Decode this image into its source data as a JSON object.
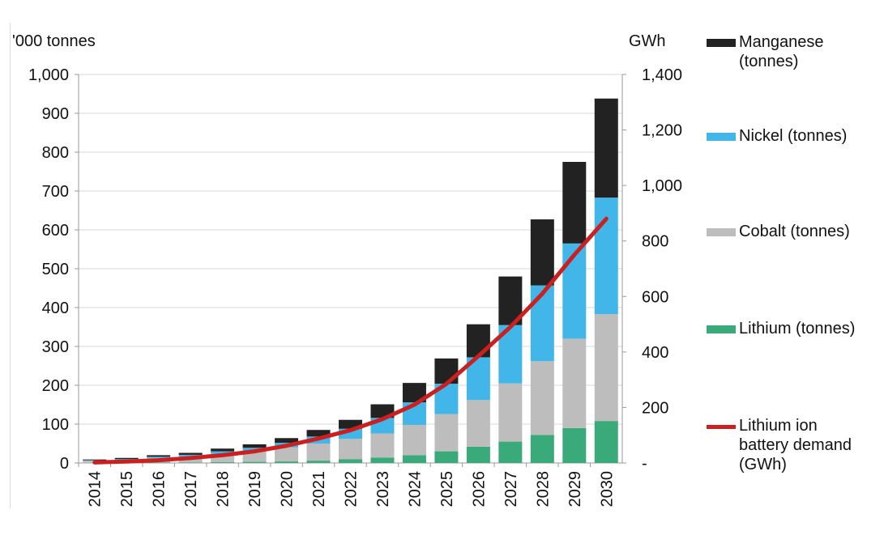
{
  "chart_data": {
    "type": "bar",
    "stacked": true,
    "categories": [
      "2014",
      "2015",
      "2016",
      "2017",
      "2018",
      "2019",
      "2020",
      "2021",
      "2022",
      "2023",
      "2024",
      "2025",
      "2026",
      "2027",
      "2028",
      "2029",
      "2030"
    ],
    "left_axis": {
      "label": "'000 tonnes",
      "ylim": [
        0,
        1000
      ],
      "ticks": [
        0,
        100,
        200,
        300,
        400,
        500,
        600,
        700,
        800,
        900,
        1000
      ],
      "tick_labels": [
        "0",
        "100",
        "200",
        "300",
        "400",
        "500",
        "600",
        "700",
        "800",
        "900",
        "1,000"
      ]
    },
    "right_axis": {
      "label": "GWh",
      "ylim": [
        0,
        1400
      ],
      "ticks": [
        0,
        200,
        400,
        600,
        800,
        1000,
        1200,
        1400
      ],
      "tick_labels": [
        "-",
        "200",
        "400",
        "600",
        "800",
        "1,000",
        "1,200",
        "1,400"
      ]
    },
    "series": [
      {
        "name": "Lithium (tonnes)",
        "color": "#3aaa7a",
        "values": [
          0,
          0,
          1,
          1,
          2,
          3,
          4,
          6,
          10,
          14,
          20,
          30,
          42,
          55,
          72,
          90,
          108
        ]
      },
      {
        "name": "Cobalt (tonnes)",
        "color": "#bdbdbd",
        "values": [
          6,
          8,
          12,
          16,
          22,
          28,
          36,
          44,
          52,
          62,
          78,
          96,
          120,
          150,
          190,
          230,
          275
        ]
      },
      {
        "name": "Nickel (tonnes)",
        "color": "#42b6e8",
        "values": [
          1,
          2,
          3,
          4,
          6,
          8,
          12,
          18,
          26,
          40,
          58,
          78,
          110,
          150,
          195,
          245,
          300
        ]
      },
      {
        "name": "Manganese (tonnes)",
        "color": "#222222",
        "values": [
          2,
          3,
          4,
          5,
          7,
          9,
          12,
          17,
          23,
          35,
          50,
          65,
          85,
          125,
          170,
          210,
          255
        ]
      }
    ],
    "line_series": {
      "name": "Lithium ion battery demand (GWh)",
      "color": "#cc1f1f",
      "axis": "right",
      "values": [
        2,
        5,
        10,
        18,
        28,
        42,
        62,
        88,
        118,
        158,
        210,
        285,
        385,
        490,
        610,
        750,
        880
      ]
    },
    "legend": [
      {
        "label": "Manganese\n(tonnes)",
        "color": "#222222",
        "kind": "box"
      },
      {
        "label": "Nickel (tonnes)",
        "color": "#42b6e8",
        "kind": "box"
      },
      {
        "label": "Cobalt (tonnes)",
        "color": "#bdbdbd",
        "kind": "box"
      },
      {
        "label": "Lithium (tonnes)",
        "color": "#3aaa7a",
        "kind": "box"
      },
      {
        "label": "Lithium ion\nbattery demand\n(GWh)",
        "color": "#cc1f1f",
        "kind": "line"
      }
    ],
    "legend_position": "right",
    "grid": true
  }
}
